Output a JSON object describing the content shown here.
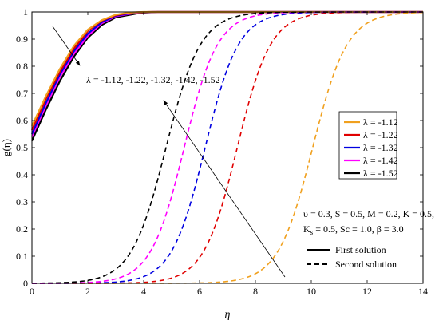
{
  "chart_data": {
    "type": "line",
    "xlabel": "η",
    "ylabel": "g(η)",
    "xlim": [
      0,
      14
    ],
    "ylim": [
      0,
      1
    ],
    "x_ticks": [
      "0",
      "2",
      "4",
      "6",
      "8",
      "10",
      "12",
      "14"
    ],
    "y_ticks": [
      "0",
      "0.1",
      "0.2",
      "0.3",
      "0.4",
      "0.5",
      "0.6",
      "0.7",
      "0.8",
      "0.9",
      "1"
    ],
    "grid": false,
    "legend_position": "right",
    "legend": [
      "λ = -1.12",
      "λ = -1.22",
      "λ = -1.32",
      "λ = -1.42",
      "λ = -1.52"
    ],
    "first_solution": [
      {
        "color": "#f0a01e",
        "values": [
          [
            0,
            0.58
          ],
          [
            0.5,
            0.69
          ],
          [
            1,
            0.79
          ],
          [
            1.5,
            0.875
          ],
          [
            2,
            0.935
          ],
          [
            2.5,
            0.97
          ],
          [
            3,
            0.99
          ],
          [
            3.5,
            0.998
          ],
          [
            4,
            1.0
          ],
          [
            14,
            1.0
          ]
        ]
      },
      {
        "color": "#e00000",
        "values": [
          [
            0,
            0.565
          ],
          [
            0.5,
            0.68
          ],
          [
            1,
            0.78
          ],
          [
            1.5,
            0.865
          ],
          [
            2,
            0.93
          ],
          [
            2.5,
            0.968
          ],
          [
            3,
            0.988
          ],
          [
            3.6,
            0.998
          ],
          [
            4.2,
            1.0
          ],
          [
            14,
            1.0
          ]
        ]
      },
      {
        "color": "#0000e0",
        "values": [
          [
            0,
            0.55
          ],
          [
            0.5,
            0.665
          ],
          [
            1,
            0.77
          ],
          [
            1.5,
            0.855
          ],
          [
            2,
            0.92
          ],
          [
            2.5,
            0.962
          ],
          [
            3,
            0.986
          ],
          [
            3.7,
            0.998
          ],
          [
            4.3,
            1.0
          ],
          [
            14,
            1.0
          ]
        ]
      },
      {
        "color": "#ff00ff",
        "values": [
          [
            0,
            0.54
          ],
          [
            0.5,
            0.655
          ],
          [
            1,
            0.76
          ],
          [
            1.5,
            0.845
          ],
          [
            2,
            0.912
          ],
          [
            2.5,
            0.958
          ],
          [
            3,
            0.984
          ],
          [
            3.8,
            0.998
          ],
          [
            4.4,
            1.0
          ],
          [
            14,
            1.0
          ]
        ]
      },
      {
        "color": "#000000",
        "values": [
          [
            0,
            0.525
          ],
          [
            0.5,
            0.64
          ],
          [
            1,
            0.745
          ],
          [
            1.5,
            0.835
          ],
          [
            2,
            0.905
          ],
          [
            2.5,
            0.952
          ],
          [
            3,
            0.98
          ],
          [
            3.9,
            0.997
          ],
          [
            4.5,
            1.0
          ],
          [
            14,
            1.0
          ]
        ]
      }
    ],
    "second_solution": [
      {
        "color": "#f0a01e",
        "midpoint": 10.05,
        "scale": 0.62
      },
      {
        "color": "#e00000",
        "midpoint": 7.35,
        "scale": 0.6
      },
      {
        "color": "#0000e0",
        "midpoint": 6.2,
        "scale": 0.6
      },
      {
        "color": "#ff00ff",
        "midpoint": 5.45,
        "scale": 0.6
      },
      {
        "color": "#000000",
        "midpoint": 4.8,
        "scale": 0.62
      }
    ],
    "annotations": {
      "lambda_values": "λ = -1.12, -1.22, -1.32, -1.42, -1.52",
      "params_line1": "υ = 0.3, S = 0.5, M = 0.2, K = 0.5,",
      "params_line2": "K",
      "params_line2_sub": "s",
      "params_line2_rest": " = 0.5, Sc = 1.0, β = 3.0",
      "first_solution_label": "First solution",
      "second_solution_label": "Second solution"
    }
  }
}
